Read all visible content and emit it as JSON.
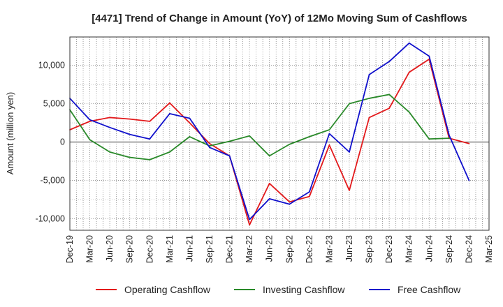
{
  "chart_data": {
    "type": "line",
    "title": "[4471]  Trend of Change in Amount (YoY) of 12Mo Moving Sum of Cashflows",
    "xlabel": "",
    "ylabel": "Amount (million yen)",
    "ylim": [
      -11500,
      13700
    ],
    "yticks": [
      10000,
      5000,
      0,
      -5000,
      -10000
    ],
    "ytick_labels": [
      "10,000",
      "5,000",
      "0",
      "-5,000",
      "-10,000"
    ],
    "categories": [
      "Dec-19",
      "Mar-20",
      "Jun-20",
      "Sep-20",
      "Dec-20",
      "Mar-21",
      "Jun-21",
      "Sep-21",
      "Dec-21",
      "Mar-22",
      "Jun-22",
      "Sep-22",
      "Dec-22",
      "Mar-23",
      "Jun-23",
      "Sep-23",
      "Dec-23",
      "Mar-24",
      "Jun-24",
      "Sep-24",
      "Dec-24",
      "Mar-25"
    ],
    "grid": true,
    "legend_position": "bottom",
    "series": [
      {
        "name": "Operating Cashflow",
        "color": "#e31a1c",
        "values": [
          1600,
          2700,
          3200,
          3000,
          2700,
          5100,
          2500,
          -200,
          -1800,
          -10800,
          -5400,
          -7800,
          -7100,
          -400,
          -6300,
          3200,
          4400,
          9100,
          10800,
          500,
          -200,
          null
        ]
      },
      {
        "name": "Investing Cashflow",
        "color": "#2a8a2a",
        "values": [
          4200,
          300,
          -1300,
          -2000,
          -2300,
          -1300,
          700,
          -500,
          100,
          800,
          -1800,
          -300,
          700,
          1600,
          5000,
          5700,
          6200,
          3900,
          400,
          500,
          null,
          null
        ]
      },
      {
        "name": "Free Cashflow",
        "color": "#1111cc",
        "values": [
          5700,
          2900,
          1900,
          1000,
          400,
          3700,
          3100,
          -700,
          -1800,
          -10100,
          -7400,
          -8100,
          -6500,
          1100,
          -1300,
          8800,
          10500,
          12900,
          11200,
          900,
          -5000,
          null
        ]
      }
    ]
  }
}
